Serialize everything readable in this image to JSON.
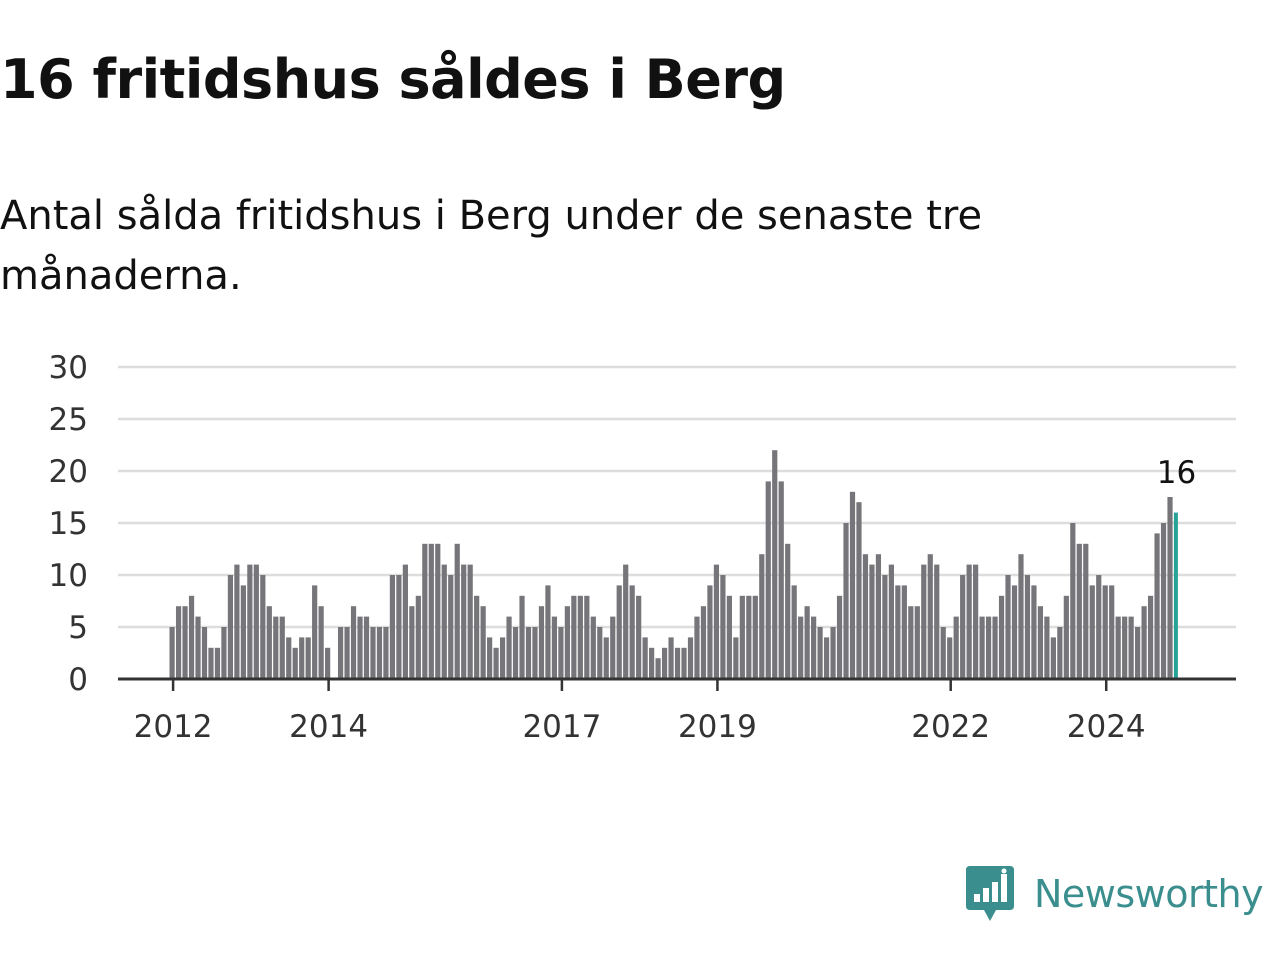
{
  "title": "16 fritidshus såldes i Berg",
  "subtitle": "Antal sålda fritidshus i Berg under de senaste tre månaderna.",
  "brand": {
    "name": "Newsworthy",
    "icon": "newsworthy-logo-icon"
  },
  "colors": {
    "bar": "#767579",
    "highlight": "#27a296",
    "grid": "#dddddd",
    "axis": "#333333",
    "brand": "#3a8e8d"
  },
  "chart_data": {
    "type": "bar",
    "title": "",
    "xlabel": "",
    "ylabel": "",
    "ylim": [
      0,
      30
    ],
    "yticks": [
      0,
      5,
      10,
      15,
      20,
      25,
      30
    ],
    "x_tick_labels": [
      "2012",
      "2014",
      "2017",
      "2019",
      "2022",
      "2024"
    ],
    "x_tick_positions": [
      "2012-01",
      "2014-01",
      "2017-01",
      "2019-01",
      "2022-01",
      "2024-01"
    ],
    "grid": true,
    "start_month": "2012-01",
    "values": [
      5,
      7,
      7,
      8,
      6,
      5,
      3,
      3,
      5,
      10,
      11,
      9,
      11,
      11,
      10,
      7,
      6,
      6,
      4,
      3,
      4,
      4,
      9,
      7,
      3,
      null,
      5,
      5,
      7,
      6,
      6,
      5,
      5,
      5,
      10,
      10,
      11,
      7,
      8,
      13,
      13,
      13,
      11,
      10,
      13,
      11,
      11,
      8,
      7,
      4,
      3,
      4,
      6,
      5,
      8,
      5,
      5,
      7,
      9,
      6,
      5,
      7,
      8,
      8,
      8,
      6,
      5,
      4,
      6,
      9,
      11,
      9,
      8,
      4,
      3,
      2,
      3,
      4,
      3,
      3,
      4,
      6,
      7,
      9,
      11,
      10,
      8,
      4,
      8,
      8,
      8,
      12,
      19,
      22,
      19,
      13,
      9,
      6,
      7,
      6,
      5,
      4,
      5,
      8,
      15,
      18,
      17,
      12,
      11,
      12,
      10,
      11,
      9,
      9,
      7,
      7,
      11,
      12,
      11,
      5,
      4,
      6,
      10,
      11,
      11,
      6,
      6,
      6,
      8,
      10,
      9,
      12,
      10,
      9,
      7,
      6,
      4,
      5,
      8,
      15,
      13,
      13,
      9,
      10,
      9,
      9,
      6,
      6,
      6,
      5,
      7,
      8,
      14,
      15,
      17.5,
      16
    ],
    "highlight": {
      "label": "16",
      "value": 16,
      "position": "last"
    }
  }
}
